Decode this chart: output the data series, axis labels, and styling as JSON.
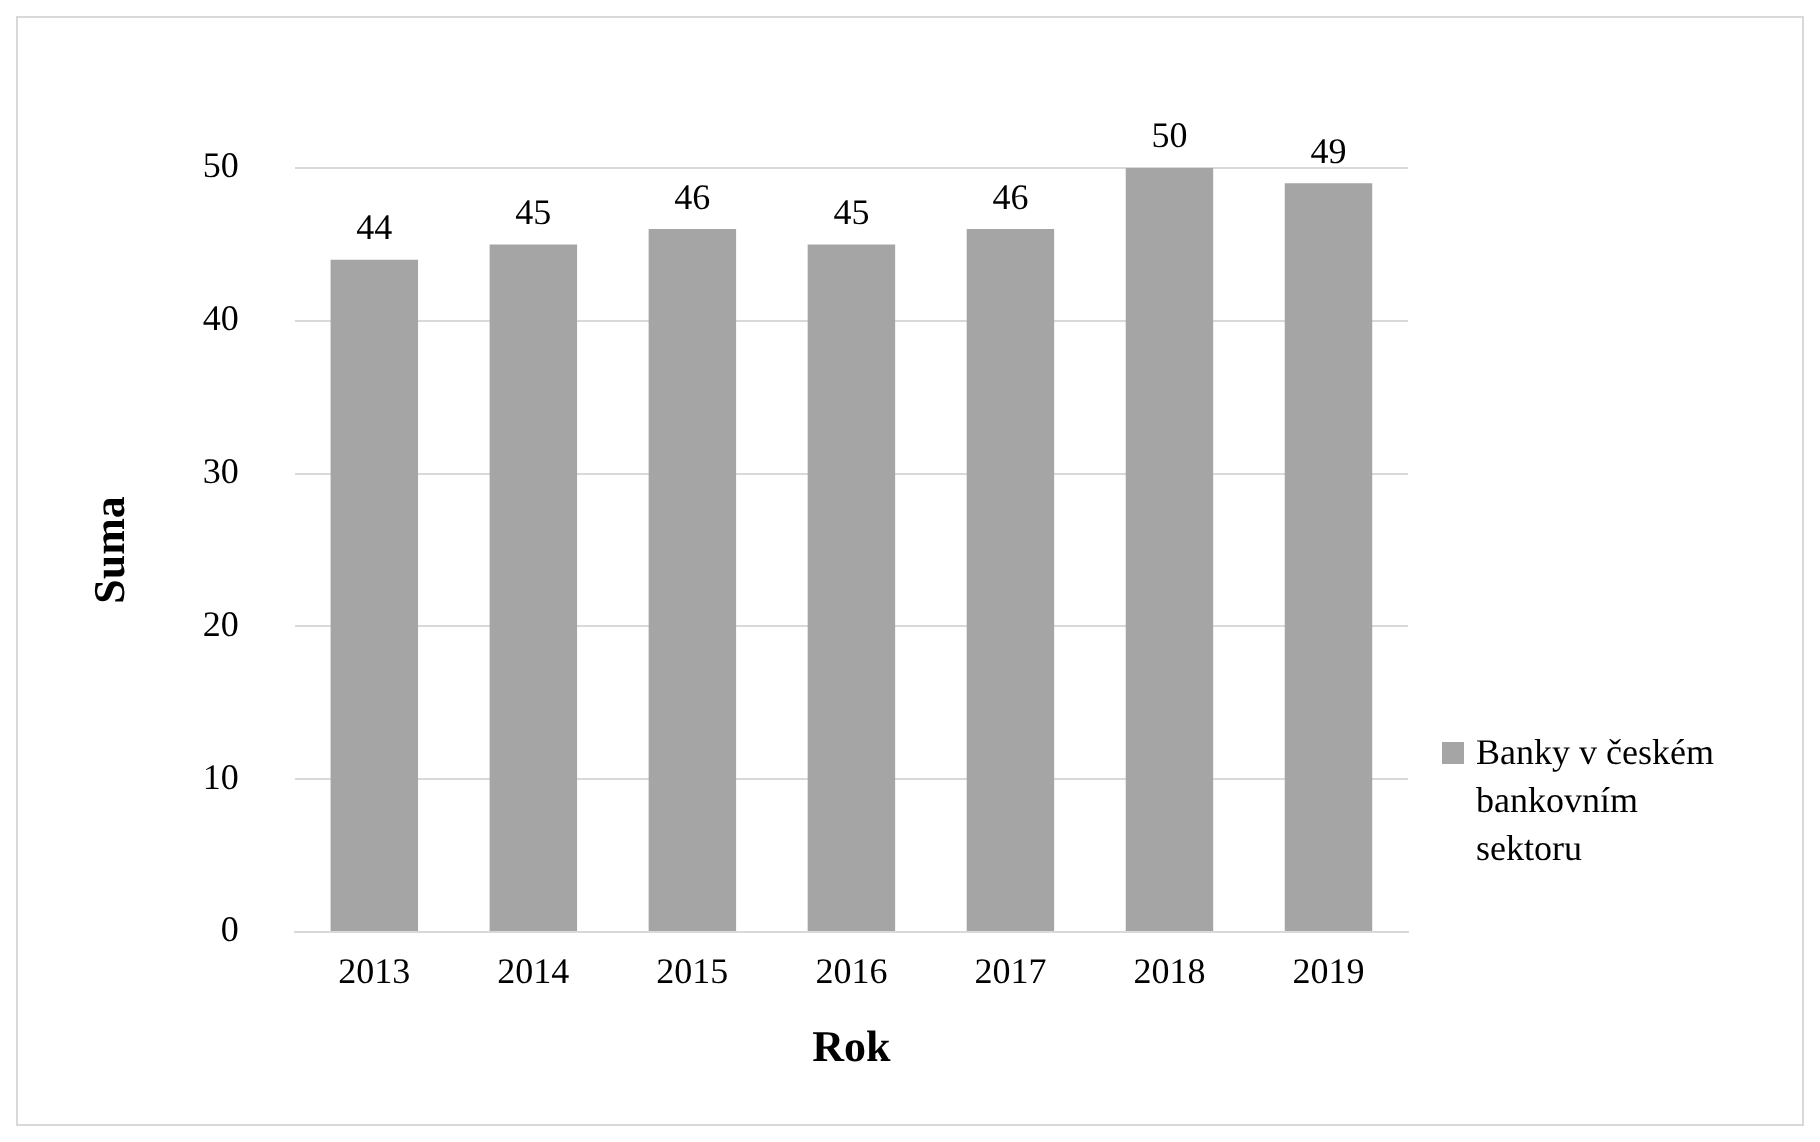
{
  "chart_data": {
    "type": "bar",
    "xlabel": "Rok",
    "ylabel": "Suma",
    "categories": [
      "2013",
      "2014",
      "2015",
      "2016",
      "2017",
      "2018",
      "2019"
    ],
    "series": [
      {
        "name": "Banky v českém bankovním sektoru",
        "color": "#a5a5a5",
        "values": [
          44,
          45,
          46,
          45,
          46,
          50,
          49
        ]
      }
    ],
    "ylim": [
      0,
      50
    ],
    "yticks": [
      0,
      10,
      20,
      30,
      40,
      50
    ],
    "grid": "y",
    "legend": "right",
    "data_labels": true
  }
}
